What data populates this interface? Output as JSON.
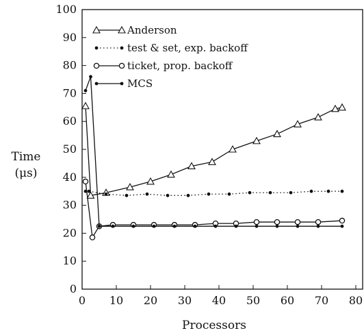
{
  "chart_data": {
    "type": "line",
    "title": "",
    "xlabel": "Processors",
    "ylabel": "Time",
    "ylabel_unit": "(μs)",
    "xlim": [
      0,
      82
    ],
    "ylim": [
      0,
      100
    ],
    "xticks": [
      0,
      10,
      20,
      30,
      40,
      50,
      60,
      70,
      80
    ],
    "yticks": [
      0,
      10,
      20,
      30,
      40,
      50,
      60,
      70,
      80,
      90,
      100
    ],
    "grid": false,
    "legend_position": "top-left",
    "series": [
      {
        "name": "Anderson",
        "marker": "triangle",
        "line": "solid",
        "color": "#111111",
        "x": [
          1,
          2.5,
          7,
          14,
          20,
          26,
          32,
          38,
          44,
          51,
          57,
          63,
          69,
          74,
          76
        ],
        "y": [
          65.5,
          33.5,
          34.5,
          36.5,
          38.5,
          41,
          44,
          45.5,
          50,
          53,
          55.5,
          59,
          61.5,
          64.5,
          65
        ]
      },
      {
        "name": "test & set, exp. backoff",
        "marker": "dot",
        "line": "dotted",
        "color": "#111111",
        "x": [
          1,
          2,
          7,
          13,
          19,
          25,
          31,
          37,
          43,
          49,
          55,
          61,
          67,
          72,
          76
        ],
        "y": [
          35,
          35,
          34,
          33.5,
          34,
          33.5,
          33.5,
          34,
          34,
          34.5,
          34.5,
          34.5,
          35,
          35,
          35
        ]
      },
      {
        "name": "ticket, prop. backoff",
        "marker": "circle",
        "line": "solid",
        "color": "#111111",
        "x": [
          1,
          3,
          5,
          9,
          15,
          21,
          27,
          33,
          39,
          45,
          51,
          57,
          63,
          69,
          76
        ],
        "y": [
          38.5,
          18.5,
          22.5,
          23,
          23,
          23,
          23,
          23,
          23.5,
          23.5,
          24,
          24,
          24,
          24,
          24.5
        ]
      },
      {
        "name": "MCS",
        "marker": "dot",
        "line": "solid",
        "color": "#111111",
        "x": [
          1,
          2.5,
          5,
          9,
          15,
          21,
          27,
          33,
          39,
          45,
          51,
          57,
          63,
          69,
          76
        ],
        "y": [
          71,
          76,
          22.5,
          22.5,
          22.5,
          22.5,
          22.5,
          22.5,
          22.5,
          22.5,
          22.5,
          22.5,
          22.5,
          22.5,
          22.5
        ]
      }
    ]
  }
}
